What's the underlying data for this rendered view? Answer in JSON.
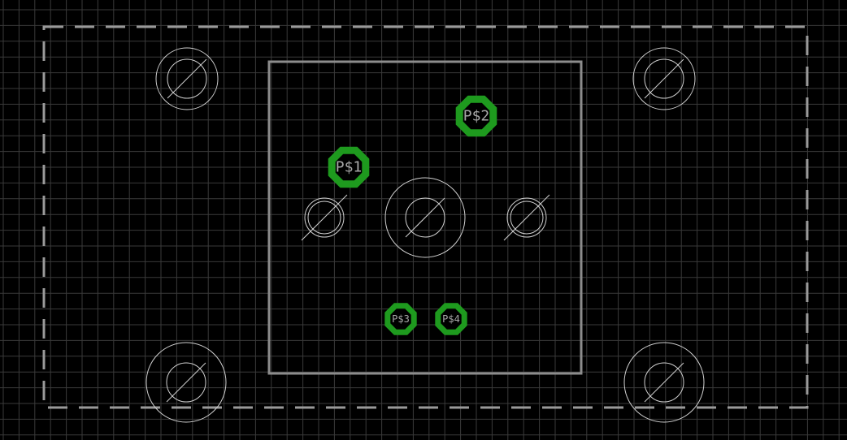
{
  "colors": {
    "background": "#000000",
    "grid": "#3a3a3a",
    "outline": "#8c8c8c",
    "dimension": "#9a9a9a",
    "hole": "#d0d0d0",
    "pad": "#1e9a1e",
    "pad_label": "#a8a8a8"
  },
  "icons": {
    "pad_shape": "octagon-pad",
    "hole_shape": "drill-hole"
  },
  "pads": [
    {
      "name": "P$1"
    },
    {
      "name": "P$2"
    },
    {
      "name": "P$3"
    },
    {
      "name": "P$4"
    }
  ]
}
